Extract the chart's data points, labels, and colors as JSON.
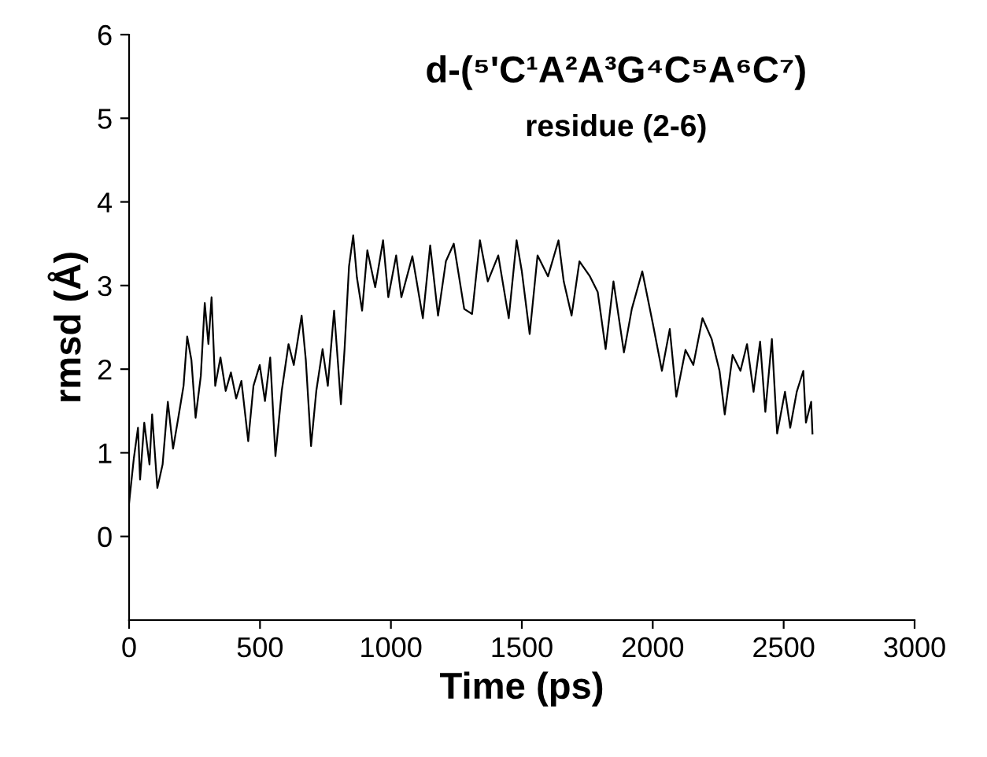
{
  "chart_data": {
    "type": "line",
    "title": "d-(⁵'C¹A²A³G⁴C⁵A⁶C⁷)",
    "subtitle": "residue (2-6)",
    "xlabel": "Time (ps)",
    "ylabel": "rmsd (Å)",
    "xlim": [
      0,
      3000
    ],
    "xticks": [
      0,
      500,
      1000,
      1500,
      2000,
      2500,
      3000
    ],
    "ylim": [
      -1,
      6
    ],
    "yticks": [
      0,
      1,
      2,
      3,
      4,
      5,
      6
    ],
    "grid": false,
    "legend": false,
    "marker": "none",
    "line_style": "solid",
    "series": [
      {
        "color": "#000000",
        "x": [
          0,
          18,
          34,
          42,
          58,
          78,
          88,
          108,
          128,
          148,
          168,
          188,
          208,
          222,
          238,
          254,
          274,
          289,
          303,
          315,
          329,
          349,
          369,
          389,
          409,
          429,
          455,
          475,
          499,
          519,
          539,
          559,
          583,
          609,
          629,
          659,
          675,
          695,
          715,
          739,
          759,
          783,
          799,
          809,
          823,
          840,
          856,
          870,
          890,
          910,
          940,
          970,
          990,
          1020,
          1040,
          1082,
          1122,
          1150,
          1180,
          1210,
          1240,
          1280,
          1310,
          1340,
          1370,
          1410,
          1450,
          1480,
          1500,
          1530,
          1560,
          1600,
          1640,
          1660,
          1690,
          1720,
          1760,
          1790,
          1820,
          1850,
          1890,
          1920,
          1960,
          2000,
          2035,
          2065,
          2090,
          2125,
          2155,
          2190,
          2225,
          2255,
          2275,
          2305,
          2335,
          2360,
          2385,
          2410,
          2430,
          2455,
          2475,
          2505,
          2525,
          2550,
          2575,
          2585,
          2605,
          2610
        ],
        "values": [
          0.4,
          0.93,
          1.3,
          0.68,
          1.36,
          0.86,
          1.46,
          0.58,
          0.86,
          1.61,
          1.05,
          1.42,
          1.8,
          2.39,
          2.11,
          1.42,
          1.92,
          2.79,
          2.3,
          2.86,
          1.8,
          2.14,
          1.74,
          1.96,
          1.65,
          1.86,
          1.14,
          1.8,
          2.05,
          1.62,
          2.14,
          0.96,
          1.74,
          2.3,
          2.05,
          2.64,
          2.11,
          1.08,
          1.74,
          2.24,
          1.8,
          2.7,
          2.02,
          1.58,
          2.24,
          3.23,
          3.6,
          3.1,
          2.7,
          3.42,
          2.98,
          3.54,
          2.86,
          3.36,
          2.86,
          3.35,
          2.61,
          3.48,
          2.64,
          3.29,
          3.5,
          2.72,
          2.66,
          3.54,
          3.05,
          3.36,
          2.61,
          3.54,
          3.17,
          2.42,
          3.36,
          3.11,
          3.54,
          3.05,
          2.64,
          3.29,
          3.11,
          2.92,
          2.24,
          3.05,
          2.2,
          2.72,
          3.17,
          2.55,
          1.98,
          2.48,
          1.67,
          2.23,
          2.05,
          2.61,
          2.36,
          1.98,
          1.46,
          2.17,
          1.98,
          2.3,
          1.73,
          2.33,
          1.49,
          2.36,
          1.23,
          1.73,
          1.3,
          1.73,
          1.98,
          1.36,
          1.61,
          1.23
        ]
      }
    ]
  }
}
